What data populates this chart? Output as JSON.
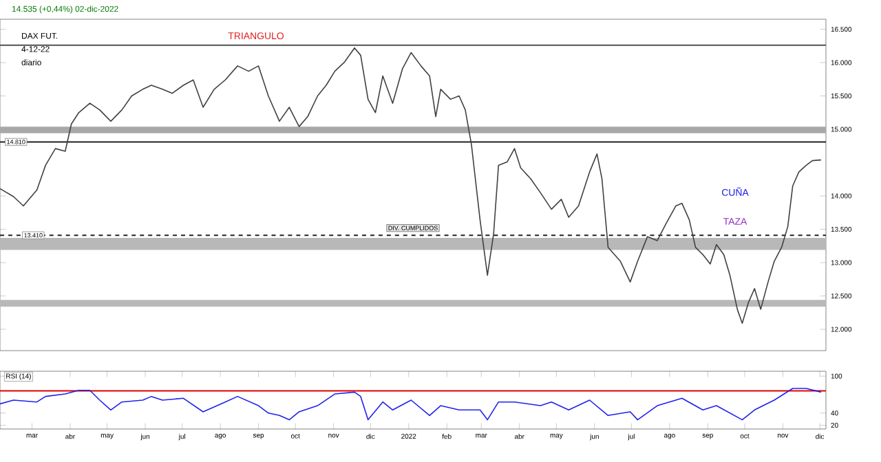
{
  "chart_data": [
    {
      "type": "line",
      "subtitle": "14.535 (+0,44%) 02-dic-2022",
      "annotations": [
        "TRIANGULO",
        "CUÑA",
        "TAZA",
        "DAX FUT.",
        "4-12-22",
        "diario",
        "DIV. CUMPLIDOS"
      ],
      "xlim": [
        "2021-02-03",
        "2022-12-06"
      ],
      "ylim": [
        11680,
        16650
      ],
      "yticks": [
        {
          "value": 12000,
          "label": "12.000"
        },
        {
          "value": 12500,
          "label": "12.500"
        },
        {
          "value": 13000,
          "label": "13.000"
        },
        {
          "value": 13500,
          "label": "13.500"
        },
        {
          "value": 14000,
          "label": "14.000"
        },
        {
          "value": 15000,
          "label": "15.000"
        },
        {
          "value": 15500,
          "label": "15.500"
        },
        {
          "value": 16000,
          "label": "16.000"
        },
        {
          "value": 16500,
          "label": "16.500"
        }
      ],
      "tick_labels": "y",
      "ref_lines": [
        {
          "axis": "y",
          "value": 14810,
          "label": "14.810",
          "color": "#202020"
        },
        {
          "axis": "y",
          "value": 13410,
          "label": "13.410",
          "color": "#202020",
          "line_style": "dashed"
        },
        {
          "axis": "y",
          "value": 16260,
          "color": "#505050"
        }
      ],
      "bands": [
        {
          "axis": "y",
          "from": 14940,
          "to": 15040,
          "color": "#a8a8a8"
        },
        {
          "axis": "y",
          "from": 13190,
          "to": 13370,
          "color": "#b8b8b8"
        },
        {
          "axis": "y",
          "from": 12340,
          "to": 12440,
          "color": "#b8b8b8"
        }
      ],
      "series": [
        {
          "color": "#404040",
          "x": [
            "2021-02-03",
            "2021-02-14",
            "2021-02-22",
            "2021-03-05",
            "2021-03-12",
            "2021-03-20",
            "2021-03-28",
            "2021-04-02",
            "2021-04-08",
            "2021-04-17",
            "2021-04-25",
            "2021-05-04",
            "2021-05-13",
            "2021-05-21",
            "2021-05-30",
            "2021-06-06",
            "2021-06-15",
            "2021-06-23",
            "2021-07-02",
            "2021-07-10",
            "2021-07-18",
            "2021-07-27",
            "2021-08-05",
            "2021-08-15",
            "2021-08-24",
            "2021-09-01",
            "2021-09-09",
            "2021-09-18",
            "2021-09-26",
            "2021-10-04",
            "2021-10-11",
            "2021-10-19",
            "2021-10-26",
            "2021-11-02",
            "2021-11-10",
            "2021-11-18",
            "2021-11-23",
            "2021-11-29",
            "2021-12-05",
            "2021-12-11",
            "2021-12-19",
            "2021-12-27",
            "2022-01-03",
            "2022-01-11",
            "2022-01-18",
            "2022-01-23",
            "2022-01-27",
            "2022-02-04",
            "2022-02-11",
            "2022-02-16",
            "2022-02-21",
            "2022-02-28",
            "2022-03-06",
            "2022-03-11",
            "2022-03-15",
            "2022-03-22",
            "2022-03-28",
            "2022-04-02",
            "2022-04-10",
            "2022-04-18",
            "2022-04-27",
            "2022-05-05",
            "2022-05-11",
            "2022-05-19",
            "2022-05-28",
            "2022-06-03",
            "2022-06-07",
            "2022-06-12",
            "2022-06-22",
            "2022-06-30",
            "2022-07-06",
            "2022-07-14",
            "2022-07-22",
            "2022-07-29",
            "2022-08-06",
            "2022-08-11",
            "2022-08-17",
            "2022-08-22",
            "2022-08-28",
            "2022-09-03",
            "2022-09-08",
            "2022-09-14",
            "2022-09-19",
            "2022-09-25",
            "2022-09-29",
            "2022-10-04",
            "2022-10-09",
            "2022-10-14",
            "2022-10-20",
            "2022-10-25",
            "2022-10-31",
            "2022-11-05",
            "2022-11-09",
            "2022-11-14",
            "2022-11-20",
            "2022-11-25",
            "2022-12-02"
          ],
          "values": [
            14110,
            13990,
            13850,
            14090,
            14460,
            14710,
            14670,
            15080,
            15250,
            15390,
            15290,
            15120,
            15290,
            15500,
            15600,
            15660,
            15600,
            15540,
            15660,
            15740,
            15330,
            15600,
            15740,
            15950,
            15870,
            15950,
            15500,
            15120,
            15330,
            15040,
            15190,
            15500,
            15660,
            15870,
            16010,
            16220,
            16110,
            15450,
            15250,
            15800,
            15390,
            15910,
            16150,
            15950,
            15800,
            15190,
            15600,
            15450,
            15500,
            15290,
            14770,
            13640,
            12810,
            13430,
            14460,
            14510,
            14710,
            14420,
            14260,
            14050,
            13800,
            13950,
            13680,
            13850,
            14360,
            14630,
            14260,
            13230,
            13020,
            12710,
            13020,
            13390,
            13330,
            13580,
            13850,
            13890,
            13640,
            13230,
            13120,
            12980,
            13270,
            13120,
            12810,
            12300,
            12090,
            12400,
            12610,
            12300,
            12710,
            13020,
            13230,
            13540,
            14150,
            14360,
            14460,
            14530,
            14540
          ]
        }
      ]
    },
    {
      "type": "line",
      "title": "RSI (14)",
      "xlim": [
        "2021-02-03",
        "2022-12-06"
      ],
      "ylim": [
        14,
        108
      ],
      "yticks": [
        20,
        40,
        100
      ],
      "xticks": [
        {
          "value": "2021-03-01",
          "label": "mar"
        },
        {
          "value": "2021-04-01",
          "label": "abr"
        },
        {
          "value": "2021-05-01",
          "label": "may"
        },
        {
          "value": "2021-06-01",
          "label": "jun"
        },
        {
          "value": "2021-07-01",
          "label": "jul"
        },
        {
          "value": "2021-08-01",
          "label": "ago"
        },
        {
          "value": "2021-09-01",
          "label": "sep"
        },
        {
          "value": "2021-10-01",
          "label": "oct"
        },
        {
          "value": "2021-11-01",
          "label": "nov"
        },
        {
          "value": "2021-12-01",
          "label": "dic"
        },
        {
          "value": "2022-01-01",
          "label": "2022"
        },
        {
          "value": "2022-02-01",
          "label": "feb"
        },
        {
          "value": "2022-03-01",
          "label": "mar"
        },
        {
          "value": "2022-04-01",
          "label": "abr"
        },
        {
          "value": "2022-05-01",
          "label": "may"
        },
        {
          "value": "2022-06-01",
          "label": "jun"
        },
        {
          "value": "2022-07-01",
          "label": "jul"
        },
        {
          "value": "2022-08-01",
          "label": "ago"
        },
        {
          "value": "2022-09-01",
          "label": "sep"
        },
        {
          "value": "2022-10-01",
          "label": "oct"
        },
        {
          "value": "2022-11-01",
          "label": "nov"
        },
        {
          "value": "2022-12-01",
          "label": "dic"
        }
      ],
      "ref_lines": [
        {
          "axis": "y",
          "value": 76,
          "color": "#e00000"
        }
      ],
      "series": [
        {
          "color": "#2020ee",
          "x": [
            "2021-02-03",
            "2021-02-14",
            "2021-03-05",
            "2021-03-12",
            "2021-03-28",
            "2021-04-08",
            "2021-04-17",
            "2021-04-25",
            "2021-05-04",
            "2021-05-13",
            "2021-05-30",
            "2021-06-06",
            "2021-06-15",
            "2021-07-02",
            "2021-07-18",
            "2021-08-05",
            "2021-08-15",
            "2021-09-01",
            "2021-09-09",
            "2021-09-18",
            "2021-09-26",
            "2021-10-04",
            "2021-10-19",
            "2021-11-02",
            "2021-11-18",
            "2021-11-23",
            "2021-11-29",
            "2021-12-11",
            "2021-12-19",
            "2022-01-03",
            "2022-01-18",
            "2022-01-27",
            "2022-02-11",
            "2022-02-28",
            "2022-03-06",
            "2022-03-15",
            "2022-03-28",
            "2022-04-18",
            "2022-04-27",
            "2022-05-11",
            "2022-05-28",
            "2022-06-12",
            "2022-06-30",
            "2022-07-06",
            "2022-07-22",
            "2022-08-06",
            "2022-08-11",
            "2022-08-28",
            "2022-09-08",
            "2022-09-29",
            "2022-10-09",
            "2022-10-25",
            "2022-11-09",
            "2022-11-20",
            "2022-12-02"
          ],
          "values": [
            55,
            61,
            58,
            67,
            71,
            77,
            77,
            61,
            45,
            58,
            61,
            67,
            61,
            64,
            42,
            58,
            67,
            52,
            40,
            36,
            29,
            42,
            52,
            71,
            74,
            67,
            29,
            58,
            45,
            61,
            36,
            52,
            45,
            45,
            29,
            58,
            58,
            52,
            58,
            45,
            61,
            36,
            42,
            29,
            52,
            61,
            64,
            45,
            52,
            29,
            45,
            61,
            80,
            80,
            74
          ]
        }
      ]
    }
  ]
}
